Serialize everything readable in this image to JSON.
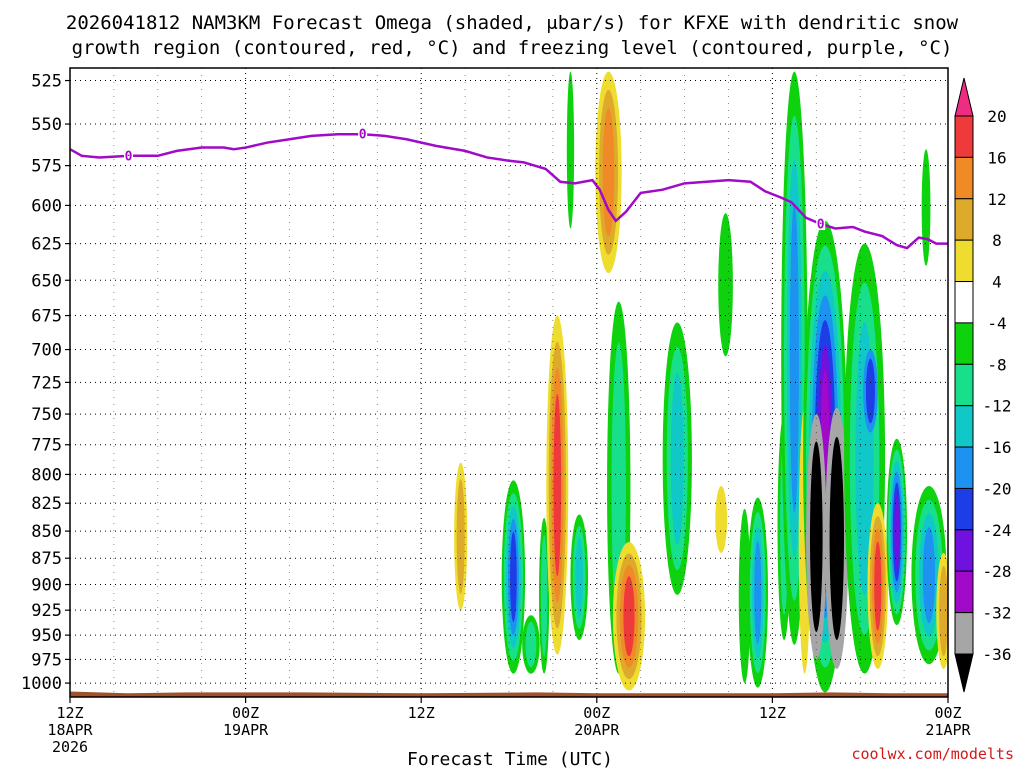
{
  "chart_data": {
    "type": "heatmap",
    "title_line1": "2026041812 NAM3KM Forecast Omega (shaded, μbar/s) for KFXE with dendritic snow",
    "title_line2": "growth region (contoured, red, °C) and freezing level (contoured, purple, °C)",
    "xlabel": "Forecast Time (UTC)",
    "credit": "coolwx.com/modelts",
    "x_range_hours": [
      0,
      60
    ],
    "y_range_mb": [
      1015,
      518
    ],
    "y_ticks": [
      525,
      550,
      575,
      600,
      625,
      650,
      675,
      700,
      725,
      750,
      775,
      800,
      825,
      850,
      875,
      900,
      925,
      950,
      975,
      1000
    ],
    "x_ticks": [
      {
        "hour": 0,
        "line1": "12Z",
        "line2": "18APR",
        "line3": "2026"
      },
      {
        "hour": 12,
        "line1": "00Z",
        "line2": "19APR",
        "line3": ""
      },
      {
        "hour": 24,
        "line1": "12Z",
        "line2": "",
        "line3": ""
      },
      {
        "hour": 36,
        "line1": "00Z",
        "line2": "20APR",
        "line3": ""
      },
      {
        "hour": 48,
        "line1": "12Z",
        "line2": "",
        "line3": ""
      },
      {
        "hour": 60,
        "line1": "00Z",
        "line2": "21APR",
        "line3": ""
      }
    ],
    "colorbar": {
      "labels": [
        "20",
        "16",
        "12",
        "8",
        "4",
        "-4",
        "-8",
        "-12",
        "-16",
        "-20",
        "-24",
        "-28",
        "-32",
        "-36"
      ],
      "levels": [
        {
          "lo": 20,
          "hi": 24,
          "color": "#ee2c82"
        },
        {
          "lo": 16,
          "hi": 20,
          "color": "#ee3a3a"
        },
        {
          "lo": 12,
          "hi": 16,
          "color": "#f08a26"
        },
        {
          "lo": 8,
          "hi": 12,
          "color": "#ddaa2c"
        },
        {
          "lo": 4,
          "hi": 8,
          "color": "#eedd2e"
        },
        {
          "lo": -4,
          "hi": 4,
          "color": "#ffffff"
        },
        {
          "lo": -8,
          "hi": -4,
          "color": "#0fd20f"
        },
        {
          "lo": -12,
          "hi": -8,
          "color": "#18e08a"
        },
        {
          "lo": -16,
          "hi": -12,
          "color": "#10c8c8"
        },
        {
          "lo": -20,
          "hi": -16,
          "color": "#1d92f0"
        },
        {
          "lo": -24,
          "hi": -20,
          "color": "#1d3de6"
        },
        {
          "lo": -28,
          "hi": -24,
          "color": "#6f12e0"
        },
        {
          "lo": -32,
          "hi": -28,
          "color": "#a00ac8"
        },
        {
          "lo": -36,
          "hi": -32,
          "color": "#a6a6a6"
        },
        {
          "lo": -40,
          "hi": -36,
          "color": "#000000"
        }
      ]
    },
    "freezing_level": {
      "label": "0",
      "color": "#a10ac8",
      "label_hours": [
        4,
        20,
        51.3
      ],
      "points": [
        [
          0,
          565
        ],
        [
          0.8,
          569
        ],
        [
          2,
          570
        ],
        [
          4,
          569
        ],
        [
          6,
          569
        ],
        [
          7.3,
          566
        ],
        [
          9,
          564
        ],
        [
          10.5,
          564
        ],
        [
          11.2,
          565
        ],
        [
          12,
          564
        ],
        [
          13.5,
          561
        ],
        [
          15,
          559
        ],
        [
          16.5,
          557
        ],
        [
          18.3,
          556
        ],
        [
          20,
          556
        ],
        [
          21.5,
          557
        ],
        [
          23,
          559
        ],
        [
          25,
          563
        ],
        [
          27,
          566
        ],
        [
          28.5,
          570
        ],
        [
          30,
          572
        ],
        [
          31,
          573
        ],
        [
          32.5,
          577
        ],
        [
          33.5,
          585
        ],
        [
          34.5,
          586
        ],
        [
          35.7,
          584
        ],
        [
          36.2,
          590
        ],
        [
          36.8,
          603
        ],
        [
          37.3,
          610
        ],
        [
          38,
          604
        ],
        [
          39,
          592
        ],
        [
          40.5,
          590
        ],
        [
          42,
          586
        ],
        [
          43.5,
          585
        ],
        [
          45,
          584
        ],
        [
          46.5,
          585
        ],
        [
          47.5,
          591
        ],
        [
          48.6,
          595
        ],
        [
          49.3,
          598
        ],
        [
          50.3,
          608
        ],
        [
          51.3,
          612
        ],
        [
          52.3,
          615
        ],
        [
          53.5,
          614
        ],
        [
          54.3,
          617
        ],
        [
          55.5,
          620
        ],
        [
          56.5,
          626
        ],
        [
          57.2,
          628
        ],
        [
          58,
          621
        ],
        [
          58.6,
          622
        ],
        [
          59.2,
          625
        ],
        [
          60,
          625
        ]
      ]
    },
    "surface_terrain": {
      "color": "#a0522d",
      "top_mb": [
        [
          0,
          1009
        ],
        [
          4,
          1011
        ],
        [
          8,
          1010
        ],
        [
          12,
          1010
        ],
        [
          16,
          1010
        ],
        [
          24,
          1011
        ],
        [
          32,
          1010
        ],
        [
          36,
          1011
        ],
        [
          48,
          1011
        ],
        [
          52,
          1010
        ],
        [
          56,
          1011
        ],
        [
          60,
          1011
        ]
      ]
    },
    "omega_features": [
      {
        "hour": 26.7,
        "mb_top": 790,
        "mb_bottom": 925,
        "w": 0.45,
        "levels": [
          4,
          8
        ]
      },
      {
        "hour": 30.3,
        "mb_top": 805,
        "mb_bottom": 990,
        "w": 0.8,
        "levels": [
          -4,
          -8,
          -12,
          -16,
          -20
        ]
      },
      {
        "hour": 31.5,
        "mb_top": 930,
        "mb_bottom": 990,
        "w": 0.6,
        "levels": [
          -4,
          -8
        ]
      },
      {
        "hour": 32.4,
        "mb_top": 838,
        "mb_bottom": 990,
        "w": 0.35,
        "levels": [
          -4,
          -8
        ]
      },
      {
        "hour": 33.3,
        "mb_top": 675,
        "mb_bottom": 970,
        "w": 0.75,
        "levels": [
          4,
          8,
          12,
          16
        ]
      },
      {
        "hour": 34.2,
        "mb_top": 520,
        "mb_bottom": 615,
        "w": 0.25,
        "levels": [
          -4
        ]
      },
      {
        "hour": 34.8,
        "mb_top": 835,
        "mb_bottom": 955,
        "w": 0.6,
        "levels": [
          -4,
          -8,
          -12
        ]
      },
      {
        "hour": 36.8,
        "mb_top": 520,
        "mb_bottom": 645,
        "w": 0.9,
        "levels": [
          4,
          8,
          12
        ]
      },
      {
        "hour": 37.5,
        "mb_top": 665,
        "mb_bottom": 990,
        "w": 0.8,
        "levels": [
          -4,
          -8
        ]
      },
      {
        "hour": 38.2,
        "mb_top": 860,
        "mb_bottom": 1008,
        "w": 1.1,
        "levels": [
          4,
          8,
          12,
          16
        ]
      },
      {
        "hour": 41.5,
        "mb_top": 680,
        "mb_bottom": 910,
        "w": 1.0,
        "levels": [
          -4,
          -8,
          -12
        ]
      },
      {
        "hour": 44.8,
        "mb_top": 605,
        "mb_bottom": 705,
        "w": 0.5,
        "levels": [
          -4
        ]
      },
      {
        "hour": 44.5,
        "mb_top": 810,
        "mb_bottom": 870,
        "w": 0.4,
        "levels": [
          4
        ]
      },
      {
        "hour": 46.1,
        "mb_top": 830,
        "mb_bottom": 1000,
        "w": 0.4,
        "levels": [
          -4
        ]
      },
      {
        "hour": 47.0,
        "mb_top": 820,
        "mb_bottom": 1005,
        "w": 0.7,
        "levels": [
          -4,
          -8,
          -12,
          -16
        ]
      },
      {
        "hour": 48.8,
        "mb_top": 750,
        "mb_bottom": 955,
        "w": 0.45,
        "levels": [
          -4,
          -8
        ]
      },
      {
        "hour": 49.5,
        "mb_top": 520,
        "mb_bottom": 960,
        "w": 0.9,
        "levels": [
          -4,
          -8,
          -12,
          -16
        ]
      },
      {
        "hour": 50.2,
        "mb_top": 745,
        "mb_bottom": 990,
        "w": 0.4,
        "levels": [
          4
        ]
      },
      {
        "hour": 51.6,
        "mb_top": 610,
        "mb_bottom": 1010,
        "w": 1.5,
        "levels": [
          -4,
          -8,
          -12,
          -16,
          -20,
          -24,
          -28
        ]
      },
      {
        "hour": 51.0,
        "mb_top": 750,
        "mb_bottom": 975,
        "w": 0.7,
        "levels": [
          -32,
          -36
        ]
      },
      {
        "hour": 52.4,
        "mb_top": 745,
        "mb_bottom": 985,
        "w": 0.8,
        "levels": [
          -32,
          -36
        ]
      },
      {
        "hour": 54.3,
        "mb_top": 625,
        "mb_bottom": 990,
        "w": 1.4,
        "levels": [
          -4,
          -8,
          -12
        ]
      },
      {
        "hour": 55.2,
        "mb_top": 825,
        "mb_bottom": 985,
        "w": 0.7,
        "levels": [
          4,
          8,
          12,
          16
        ]
      },
      {
        "hour": 54.7,
        "mb_top": 700,
        "mb_bottom": 765,
        "w": 0.5,
        "levels": [
          -16,
          -20
        ]
      },
      {
        "hour": 56.5,
        "mb_top": 770,
        "mb_bottom": 940,
        "w": 0.7,
        "levels": [
          -4,
          -8,
          -12,
          -16,
          -20,
          -24
        ]
      },
      {
        "hour": 58.5,
        "mb_top": 565,
        "mb_bottom": 640,
        "w": 0.3,
        "levels": [
          -4
        ]
      },
      {
        "hour": 58.7,
        "mb_top": 810,
        "mb_bottom": 980,
        "w": 1.2,
        "levels": [
          -4,
          -8,
          -12,
          -16
        ]
      },
      {
        "hour": 59.7,
        "mb_top": 870,
        "mb_bottom": 985,
        "w": 0.5,
        "levels": [
          4,
          8
        ]
      }
    ]
  }
}
